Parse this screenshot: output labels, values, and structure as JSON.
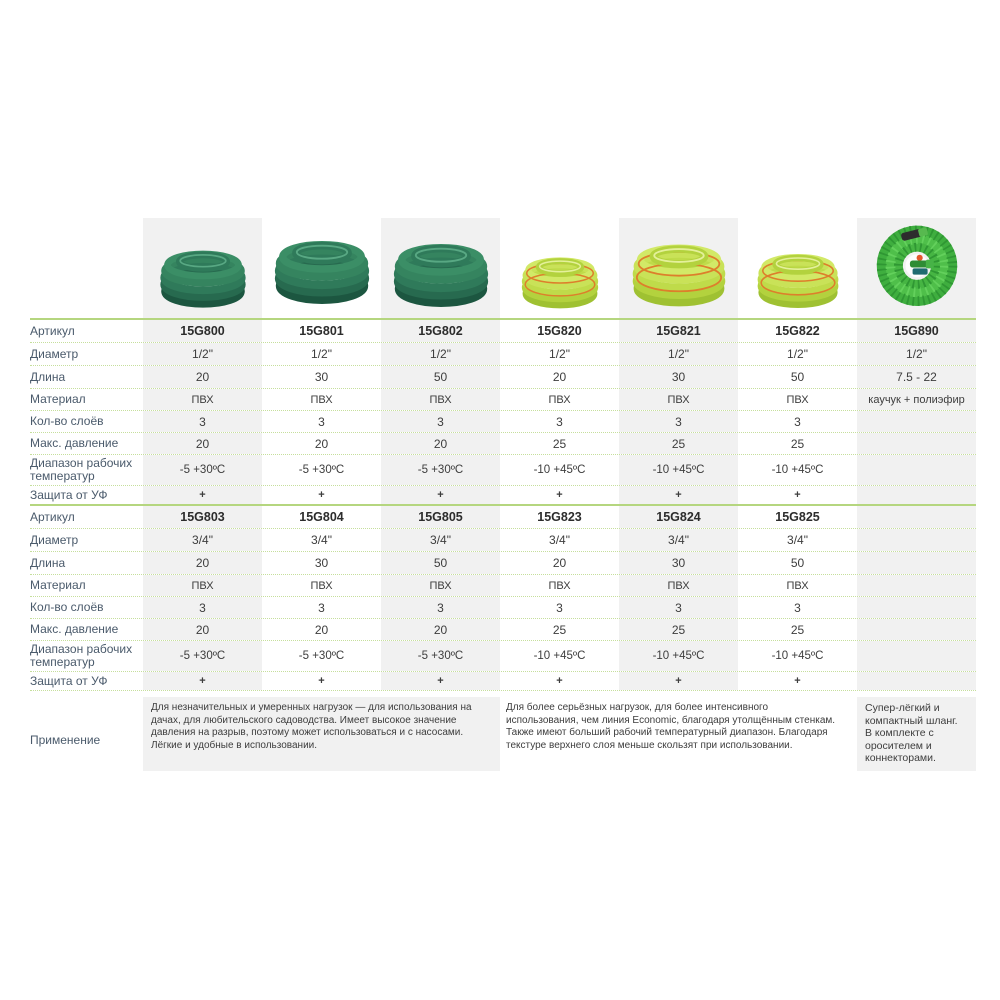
{
  "colors": {
    "shade_column": "#f1f1f1",
    "line_dotted": "#c6df9c",
    "line_solid": "#b5d67f",
    "label_text": "#4a5a6b",
    "value_text": "#3d3d3d",
    "hose_dark_green": "#2f7a5a",
    "hose_yellow_green": "#b3d23e",
    "hose_stripe_orange": "#dd7f2b",
    "hose_expandable_green": "#47b347"
  },
  "rows": [
    {
      "key": "article",
      "label": "Артикул"
    },
    {
      "key": "diameter",
      "label": "Диаметр"
    },
    {
      "key": "length",
      "label": "Длина"
    },
    {
      "key": "material",
      "label": "Материал"
    },
    {
      "key": "layers",
      "label": "Кол-во слоёв"
    },
    {
      "key": "pressure",
      "label": "Макс. давление"
    },
    {
      "key": "temp",
      "label": "Диапазон рабочих температур"
    },
    {
      "key": "uv",
      "label": "Защита от УФ"
    }
  ],
  "products": [
    {
      "article": "15G800",
      "image": "hose-coil-dark-green"
    },
    {
      "article": "15G801",
      "image": "hose-coil-dark-green"
    },
    {
      "article": "15G802",
      "image": "hose-coil-dark-green"
    },
    {
      "article": "15G820",
      "image": "hose-coil-yellow-green"
    },
    {
      "article": "15G821",
      "image": "hose-coil-yellow-green"
    },
    {
      "article": "15G822",
      "image": "hose-coil-yellow-green"
    },
    {
      "article": "15G890",
      "image": "expandable-hose"
    }
  ],
  "block1": [
    {
      "article": "15G800",
      "diameter": "1/2\"",
      "length": "20",
      "material": "ПВХ",
      "layers": "3",
      "pressure": "20",
      "temp": "-5 +30ºС",
      "uv": "+"
    },
    {
      "article": "15G801",
      "diameter": "1/2\"",
      "length": "30",
      "material": "ПВХ",
      "layers": "3",
      "pressure": "20",
      "temp": "-5 +30ºС",
      "uv": "+"
    },
    {
      "article": "15G802",
      "diameter": "1/2\"",
      "length": "50",
      "material": "ПВХ",
      "layers": "3",
      "pressure": "20",
      "temp": "-5 +30ºС",
      "uv": "+"
    },
    {
      "article": "15G820",
      "diameter": "1/2\"",
      "length": "20",
      "material": "ПВХ",
      "layers": "3",
      "pressure": "25",
      "temp": "-10 +45ºС",
      "uv": "+"
    },
    {
      "article": "15G821",
      "diameter": "1/2\"",
      "length": "30",
      "material": "ПВХ",
      "layers": "3",
      "pressure": "25",
      "temp": "-10 +45ºС",
      "uv": "+"
    },
    {
      "article": "15G822",
      "diameter": "1/2\"",
      "length": "50",
      "material": "ПВХ",
      "layers": "3",
      "pressure": "25",
      "temp": "-10 +45ºС",
      "uv": "+"
    },
    {
      "article": "15G890",
      "diameter": "1/2\"",
      "length": "7.5 - 22",
      "material": "каучук + полиэфир",
      "layers": "",
      "pressure": "",
      "temp": "",
      "uv": ""
    }
  ],
  "block2": [
    {
      "article": "15G803",
      "diameter": "3/4\"",
      "length": "20",
      "material": "ПВХ",
      "layers": "3",
      "pressure": "20",
      "temp": "-5 +30ºС",
      "uv": "+"
    },
    {
      "article": "15G804",
      "diameter": "3/4\"",
      "length": "30",
      "material": "ПВХ",
      "layers": "3",
      "pressure": "20",
      "temp": "-5 +30ºС",
      "uv": "+"
    },
    {
      "article": "15G805",
      "diameter": "3/4\"",
      "length": "50",
      "material": "ПВХ",
      "layers": "3",
      "pressure": "20",
      "temp": "-5 +30ºС",
      "uv": "+"
    },
    {
      "article": "15G823",
      "diameter": "3/4\"",
      "length": "20",
      "material": "ПВХ",
      "layers": "3",
      "pressure": "25",
      "temp": "-10 +45ºС",
      "uv": "+"
    },
    {
      "article": "15G824",
      "diameter": "3/4\"",
      "length": "30",
      "material": "ПВХ",
      "layers": "3",
      "pressure": "25",
      "temp": "-10 +45ºС",
      "uv": "+"
    },
    {
      "article": "15G825",
      "diameter": "3/4\"",
      "length": "50",
      "material": "ПВХ",
      "layers": "3",
      "pressure": "25",
      "temp": "-10 +45ºС",
      "uv": "+"
    },
    {
      "article": "",
      "diameter": "",
      "length": "",
      "material": "",
      "layers": "",
      "pressure": "",
      "temp": "",
      "uv": ""
    }
  ],
  "application": {
    "label": "Применение",
    "economic_text": "Для незначительных и умеренных нагрузок — для использования на дачах, для любительского садоводства. Имеет высокое значение давления на разрыв, поэтому может использоваться и с насосами. Лёгкие и удобные в использовании.",
    "standard_text": "Для более серьёзных нагрузок, для более интенсивного использования, чем линия Economic, благодаря утолщённым стенкам. Также имеют больший рабочий температурный диапазон. Благодаря текстуре верхнего слоя меньше скользят при использовании.",
    "expandable_text": "Супер-лёгкий и компактный шланг. В комплекте с оросителем и коннекторами."
  }
}
